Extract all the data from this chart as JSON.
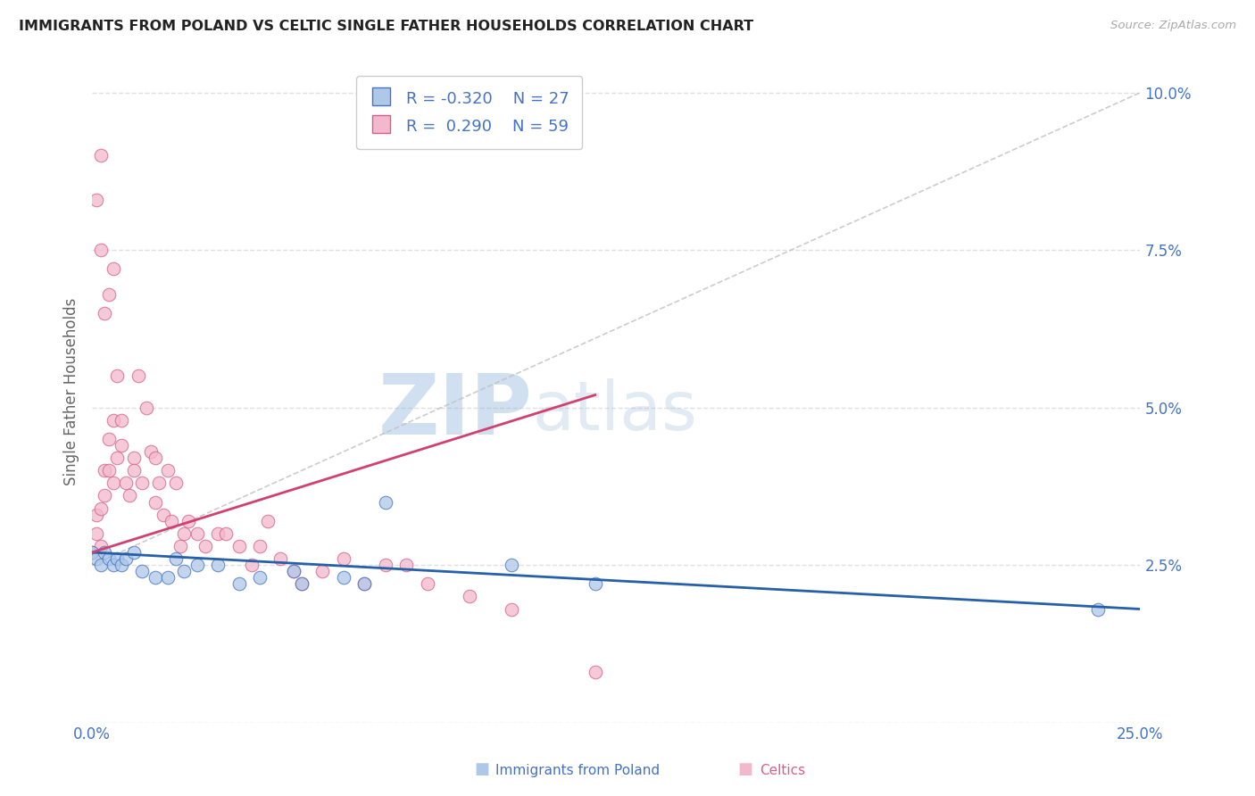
{
  "title": "IMMIGRANTS FROM POLAND VS CELTIC SINGLE FATHER HOUSEHOLDS CORRELATION CHART",
  "source": "Source: ZipAtlas.com",
  "ylabel": "Single Father Households",
  "legend_label1": "Immigrants from Poland",
  "legend_label2": "Celtics",
  "r1": -0.32,
  "n1": 27,
  "r2": 0.29,
  "n2": 59,
  "xmin": 0.0,
  "xmax": 0.25,
  "ymin": 0.0,
  "ymax": 0.105,
  "ytick_vals": [
    0.0,
    0.025,
    0.05,
    0.075,
    0.1
  ],
  "ytick_labels": [
    "",
    "2.5%",
    "5.0%",
    "7.5%",
    "10.0%"
  ],
  "xtick_vals": [
    0.0,
    0.05,
    0.1,
    0.15,
    0.2,
    0.25
  ],
  "xtick_labels": [
    "0.0%",
    "",
    "",
    "",
    "",
    "25.0%"
  ],
  "color_blue": "#aec8e8",
  "color_pink": "#f4b8cc",
  "color_blue_edge": "#4472c4",
  "color_pink_edge": "#d45f8a",
  "color_dashed": "#c0c0c0",
  "color_blue_line": "#2560a8",
  "color_pink_line": "#d04070",
  "background": "#ffffff",
  "watermark_zip": "ZIP",
  "watermark_atlas": "atlas",
  "poland_x": [
    0.0,
    0.001,
    0.002,
    0.003,
    0.004,
    0.005,
    0.006,
    0.007,
    0.008,
    0.01,
    0.012,
    0.015,
    0.018,
    0.02,
    0.022,
    0.025,
    0.03,
    0.035,
    0.04,
    0.048,
    0.05,
    0.06,
    0.065,
    0.07,
    0.1,
    0.12,
    0.24
  ],
  "poland_y": [
    0.027,
    0.026,
    0.025,
    0.027,
    0.026,
    0.025,
    0.026,
    0.025,
    0.026,
    0.027,
    0.024,
    0.023,
    0.023,
    0.026,
    0.024,
    0.025,
    0.025,
    0.022,
    0.023,
    0.024,
    0.022,
    0.023,
    0.022,
    0.035,
    0.025,
    0.022,
    0.018
  ],
  "celtics_x": [
    0.0,
    0.001,
    0.001,
    0.002,
    0.002,
    0.003,
    0.003,
    0.004,
    0.004,
    0.005,
    0.005,
    0.006,
    0.006,
    0.007,
    0.007,
    0.008,
    0.009,
    0.01,
    0.01,
    0.011,
    0.012,
    0.013,
    0.014,
    0.015,
    0.015,
    0.016,
    0.017,
    0.018,
    0.019,
    0.02,
    0.021,
    0.022,
    0.023,
    0.025,
    0.027,
    0.03,
    0.032,
    0.035,
    0.038,
    0.04,
    0.042,
    0.045,
    0.048,
    0.05,
    0.055,
    0.06,
    0.065,
    0.07,
    0.075,
    0.08,
    0.09,
    0.1,
    0.001,
    0.002,
    0.002,
    0.003,
    0.004,
    0.005,
    0.12
  ],
  "celtics_y": [
    0.027,
    0.03,
    0.033,
    0.034,
    0.028,
    0.036,
    0.04,
    0.04,
    0.045,
    0.038,
    0.048,
    0.042,
    0.055,
    0.044,
    0.048,
    0.038,
    0.036,
    0.042,
    0.04,
    0.055,
    0.038,
    0.05,
    0.043,
    0.042,
    0.035,
    0.038,
    0.033,
    0.04,
    0.032,
    0.038,
    0.028,
    0.03,
    0.032,
    0.03,
    0.028,
    0.03,
    0.03,
    0.028,
    0.025,
    0.028,
    0.032,
    0.026,
    0.024,
    0.022,
    0.024,
    0.026,
    0.022,
    0.025,
    0.025,
    0.022,
    0.02,
    0.018,
    0.083,
    0.075,
    0.09,
    0.065,
    0.068,
    0.072,
    0.008
  ]
}
